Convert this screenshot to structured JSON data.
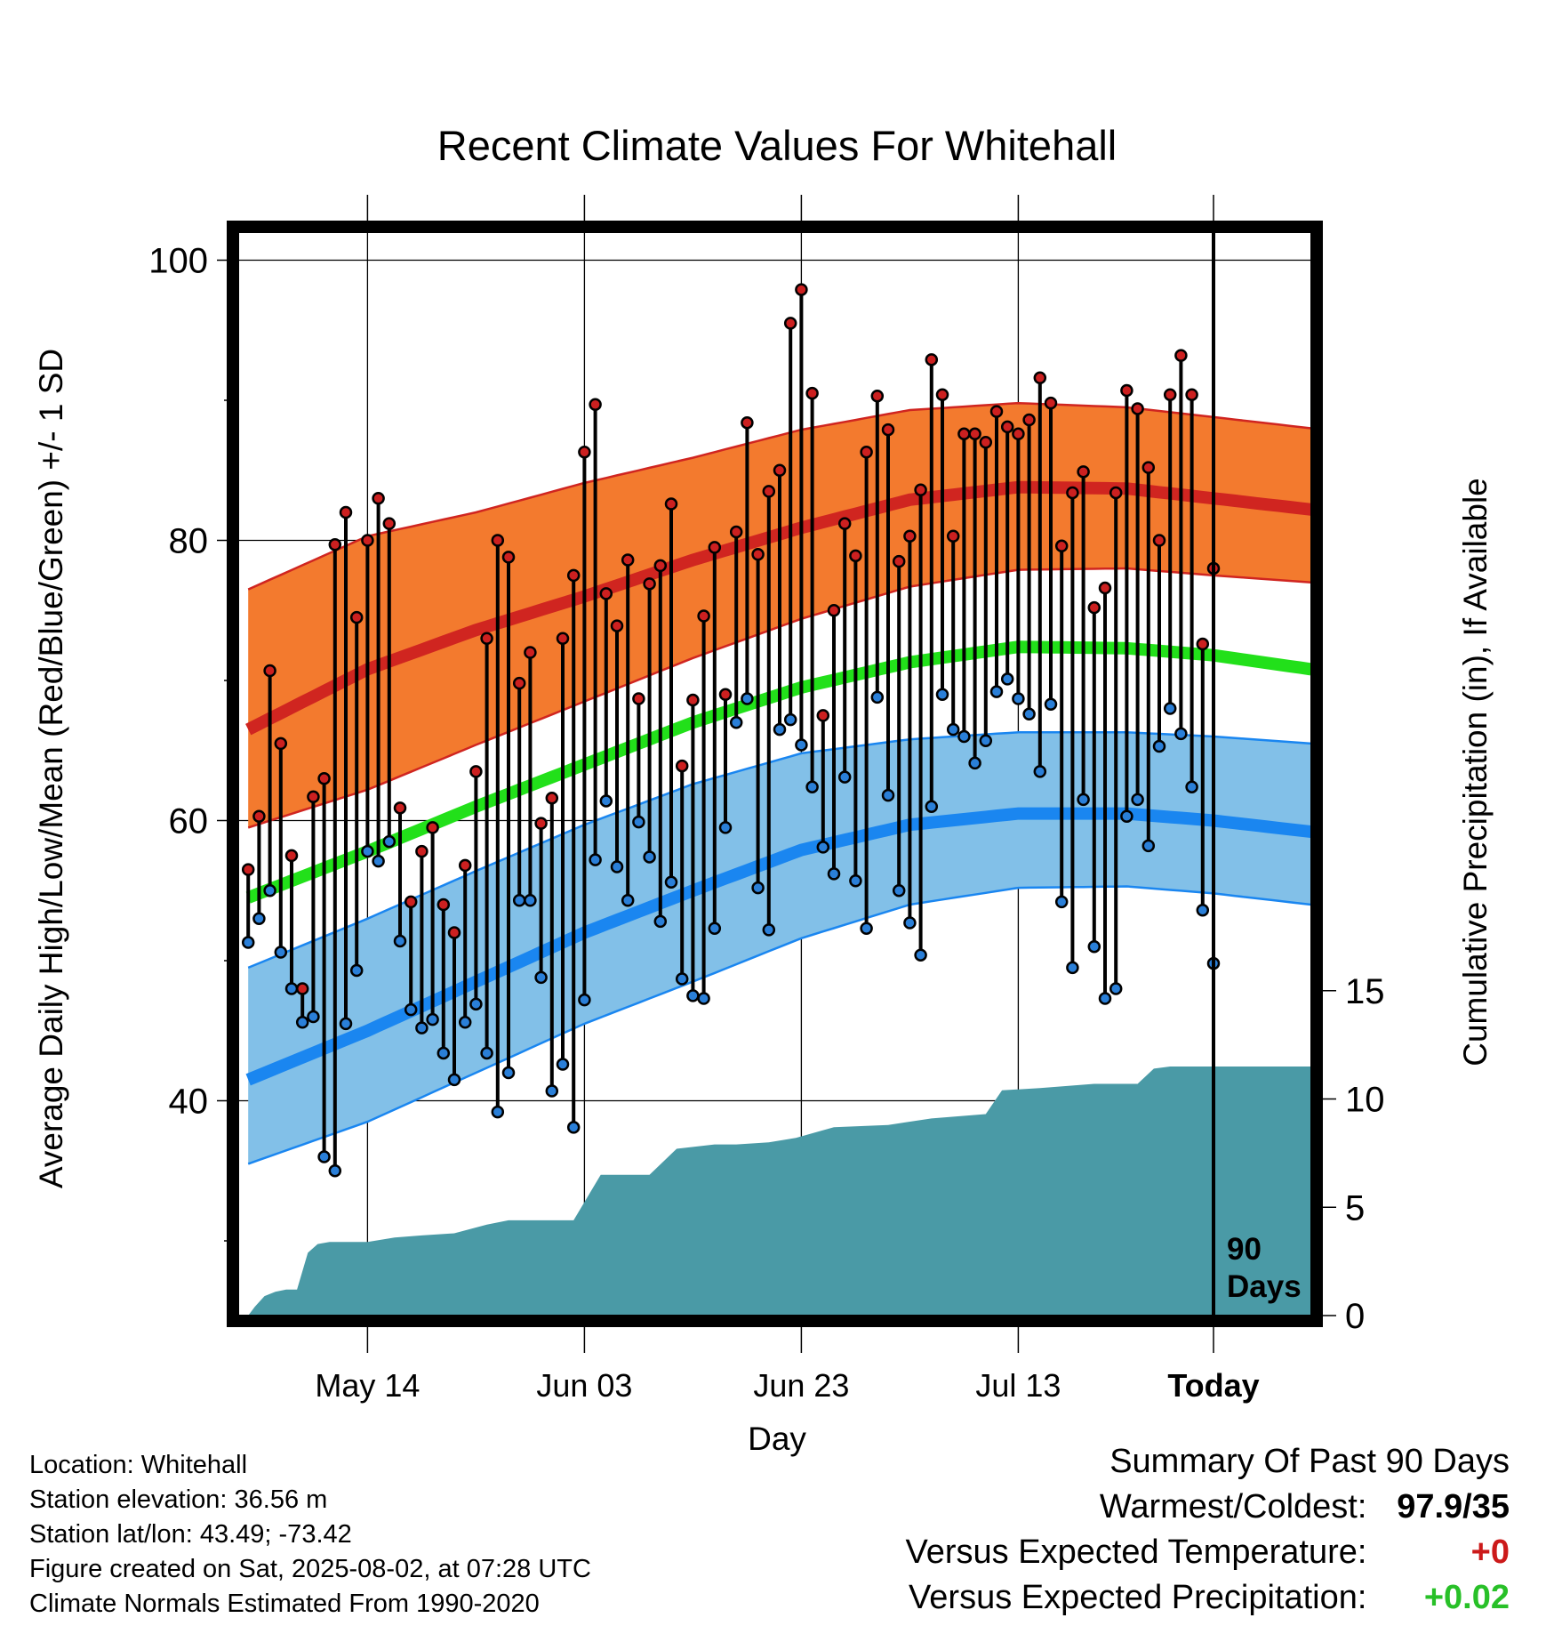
{
  "chart_data": {
    "type": "line",
    "title": "Recent Climate Values For Whitehall",
    "xlabel": "Day",
    "ylabel": "Average Daily High/Low/Mean (Red/Blue/Green) +/- 1 SD",
    "y2label": "Cumulative Precipitation (in), If Available",
    "ylim": [
      25,
      103
    ],
    "y2lim": [
      0,
      20
    ],
    "xlim": [
      -89,
      9
    ],
    "x_ticks": [
      {
        "day": -78,
        "label": "May 14"
      },
      {
        "day": -58,
        "label": "Jun 03"
      },
      {
        "day": -38,
        "label": "Jun 23"
      },
      {
        "day": -18,
        "label": "Jul 13"
      },
      {
        "day": 0,
        "label": "Today"
      }
    ],
    "y_ticks": [
      "40",
      "60",
      "80",
      "100"
    ],
    "y2_ticks": [
      "0",
      "5",
      "10",
      "15"
    ],
    "period_label": [
      "90",
      "Days"
    ],
    "normals": {
      "day": [
        -89,
        -78,
        -68,
        -58,
        -48,
        -38,
        -28,
        -18,
        -8,
        0,
        9
      ],
      "high_mean": [
        66.5,
        70.8,
        73.6,
        76.0,
        78.6,
        80.9,
        82.9,
        83.8,
        83.7,
        83.0,
        82.2
      ],
      "high_upper": [
        76.5,
        80.3,
        82.0,
        84.1,
        85.9,
        87.9,
        89.3,
        89.8,
        89.5,
        88.8,
        88.0
      ],
      "high_lower": [
        59.5,
        62.2,
        65.4,
        68.5,
        71.6,
        74.4,
        76.7,
        77.9,
        78.0,
        77.5,
        77.0
      ],
      "mean": [
        54.5,
        57.8,
        61.0,
        64.0,
        67.0,
        69.5,
        71.3,
        72.4,
        72.3,
        71.8,
        70.8
      ],
      "low_mean": [
        41.5,
        45.0,
        48.5,
        52.0,
        55.0,
        57.9,
        59.7,
        60.5,
        60.5,
        60.0,
        59.2
      ],
      "low_upper": [
        49.5,
        53.0,
        56.4,
        59.7,
        62.6,
        64.8,
        65.8,
        66.3,
        66.3,
        66.0,
        65.5
      ],
      "low_lower": [
        35.5,
        38.5,
        42.0,
        45.5,
        48.5,
        51.6,
        54.0,
        55.2,
        55.3,
        54.8,
        54.0
      ]
    },
    "observed": {
      "day_start": -89,
      "high": [
        56.5,
        60.3,
        70.7,
        65.5,
        57.5,
        48.0,
        61.7,
        63.0,
        79.7,
        82.0,
        74.5,
        80.0,
        83.0,
        81.2,
        60.9,
        54.2,
        57.8,
        59.5,
        54.0,
        52.0,
        56.8,
        63.5,
        73.0,
        80.0,
        78.8,
        69.8,
        72.0,
        59.8,
        61.6,
        73.0,
        77.5,
        86.3,
        89.7,
        76.2,
        73.9,
        78.6,
        68.7,
        76.9,
        78.2,
        82.6,
        63.9,
        68.6,
        74.6,
        79.5,
        69.0,
        80.6,
        88.4,
        79.0,
        83.5,
        85.0,
        95.5,
        97.9,
        90.5,
        67.5,
        75.0,
        81.2,
        78.9,
        86.3,
        90.3,
        87.9,
        78.5,
        80.3,
        83.6,
        92.9,
        90.4,
        80.3,
        87.6,
        87.6,
        87.0,
        89.2,
        88.1,
        87.6,
        88.6,
        91.6,
        89.8,
        79.6,
        83.4,
        84.9,
        75.2,
        76.6,
        83.4,
        90.7,
        89.4,
        85.2,
        80.0,
        90.4,
        93.2,
        90.4,
        72.6,
        78.0
      ],
      "low": [
        51.3,
        53.0,
        55.0,
        50.6,
        48.0,
        45.6,
        46.0,
        36.0,
        35.0,
        45.5,
        49.3,
        57.8,
        57.1,
        58.5,
        51.4,
        46.5,
        45.2,
        45.8,
        43.4,
        41.5,
        45.6,
        46.9,
        43.4,
        39.2,
        42.0,
        54.3,
        54.3,
        48.8,
        40.7,
        42.6,
        38.1,
        47.2,
        57.2,
        61.4,
        56.7,
        54.3,
        59.9,
        57.4,
        52.8,
        55.6,
        48.7,
        47.5,
        47.3,
        52.3,
        59.5,
        67.0,
        68.7,
        55.2,
        52.2,
        66.5,
        67.2,
        65.4,
        62.4,
        58.1,
        56.2,
        63.1,
        55.7,
        52.3,
        68.8,
        61.8,
        55.0,
        52.7,
        50.4,
        61.0,
        69.0,
        66.5,
        66.0,
        64.1,
        65.7,
        69.2,
        70.1,
        68.7,
        67.6,
        63.5,
        68.3,
        54.2,
        49.5,
        61.5,
        51.0,
        47.3,
        48.0,
        60.3,
        61.5,
        58.2,
        65.3,
        68.0,
        66.2,
        62.4,
        53.6,
        49.8
      ]
    },
    "precip": {
      "day": [
        -88.4,
        -87.5,
        -86.5,
        -85.5,
        -84.5,
        -83.5,
        -82.6,
        -81.5,
        -80.0,
        -78.0,
        -75.5,
        -73.0,
        -70.0,
        -67.0,
        -65.0,
        -62.0,
        -59.0,
        -56.5,
        -55.0,
        -52.0,
        -49.5,
        -46.0,
        -44.0,
        -41.0,
        -38.5,
        -35.0,
        -30.0,
        -26.0,
        -21.0,
        -19.5,
        -16.0,
        -11.0,
        -7.0,
        -5.5,
        -4.0,
        0.0,
        9.0
      ],
      "cumulative": [
        0.4,
        0.9,
        1.1,
        1.2,
        1.2,
        2.9,
        3.3,
        3.4,
        3.4,
        3.4,
        3.6,
        3.7,
        3.8,
        4.2,
        4.4,
        4.4,
        4.4,
        6.5,
        6.5,
        6.5,
        7.7,
        7.9,
        7.9,
        8.0,
        8.2,
        8.7,
        8.8,
        9.1,
        9.3,
        10.4,
        10.5,
        10.7,
        10.7,
        11.4,
        11.5,
        11.5,
        11.5
      ]
    }
  },
  "location_info": [
    "Location: Whitehall",
    "Station elevation: 36.56 m",
    "Station lat/lon: 43.49; -73.42",
    "Figure created on Sat, 2025-08-02, at 07:28 UTC",
    "Climate Normals Estimated From 1990-2020"
  ],
  "summary": {
    "title": "Summary Of Past 90 Days",
    "warmest_coldest_label": "Warmest/Coldest:",
    "warmest_coldest_value": "97.9/35",
    "temp_label": "Versus Expected Temperature:",
    "temp_value": "+0",
    "precip_label": "Versus Expected Precipitation:",
    "precip_value": "+0.02"
  },
  "colors": {
    "high_band": "#f37a2e",
    "high_line": "#d02520",
    "mean_line": "#22e01a",
    "low_band": "#82c0e8",
    "low_line": "#1a86f0",
    "precip_fill": "#4a9aa6",
    "high_dot": "#cc2020",
    "low_dot": "#2a7fd8",
    "temp_value": "#cc1a1a",
    "precip_value": "#28c028"
  }
}
